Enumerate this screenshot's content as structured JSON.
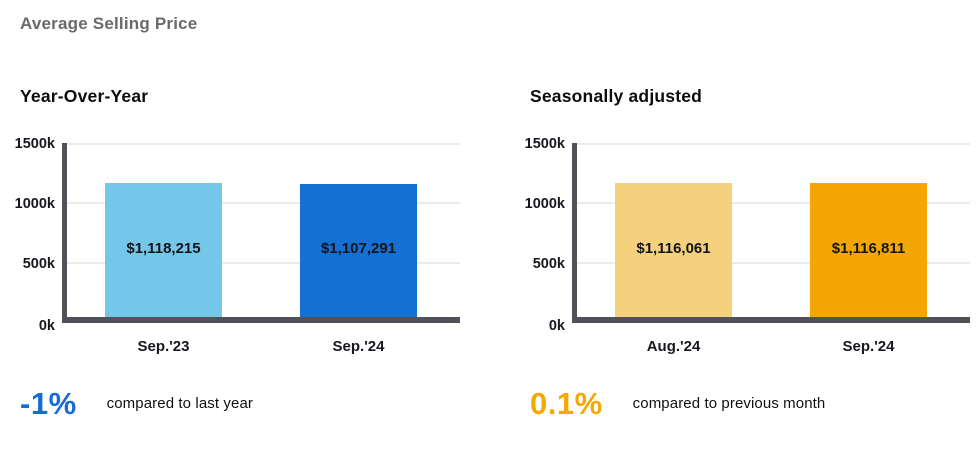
{
  "page": {
    "title": "Average Selling Price"
  },
  "chart_data": [
    {
      "type": "bar",
      "title": "Year-Over-Year",
      "categories": [
        "Sep.'23",
        "Sep.'24"
      ],
      "values": [
        1118215,
        1107291
      ],
      "value_labels": [
        "$1,118,215",
        "$1,107,291"
      ],
      "colors": [
        "#74c7e9",
        "#1470d2"
      ],
      "ylim": [
        0,
        1500000
      ],
      "ytick_labels": [
        "1500k",
        "1000k",
        "500k",
        "0k"
      ],
      "grid": true,
      "legend": false,
      "xlabel": "",
      "ylabel": ""
    },
    {
      "type": "bar",
      "title": "Seasonally adjusted",
      "categories": [
        "Aug.'24",
        "Sep.'24"
      ],
      "values": [
        1116061,
        1116811
      ],
      "value_labels": [
        "$1,116,061",
        "$1,116,811"
      ],
      "colors": [
        "#f6d17d",
        "#f4a702"
      ],
      "ylim": [
        0,
        1500000
      ],
      "ytick_labels": [
        "1500k",
        "1000k",
        "500k",
        "0k"
      ],
      "grid": true,
      "legend": false,
      "xlabel": "",
      "ylabel": ""
    }
  ],
  "stats": [
    {
      "value": "-1%",
      "caption": "compared to last year",
      "color": "#166bd8"
    },
    {
      "value": "0.1%",
      "caption": "compared to previous month",
      "color": "#f5a702"
    }
  ]
}
